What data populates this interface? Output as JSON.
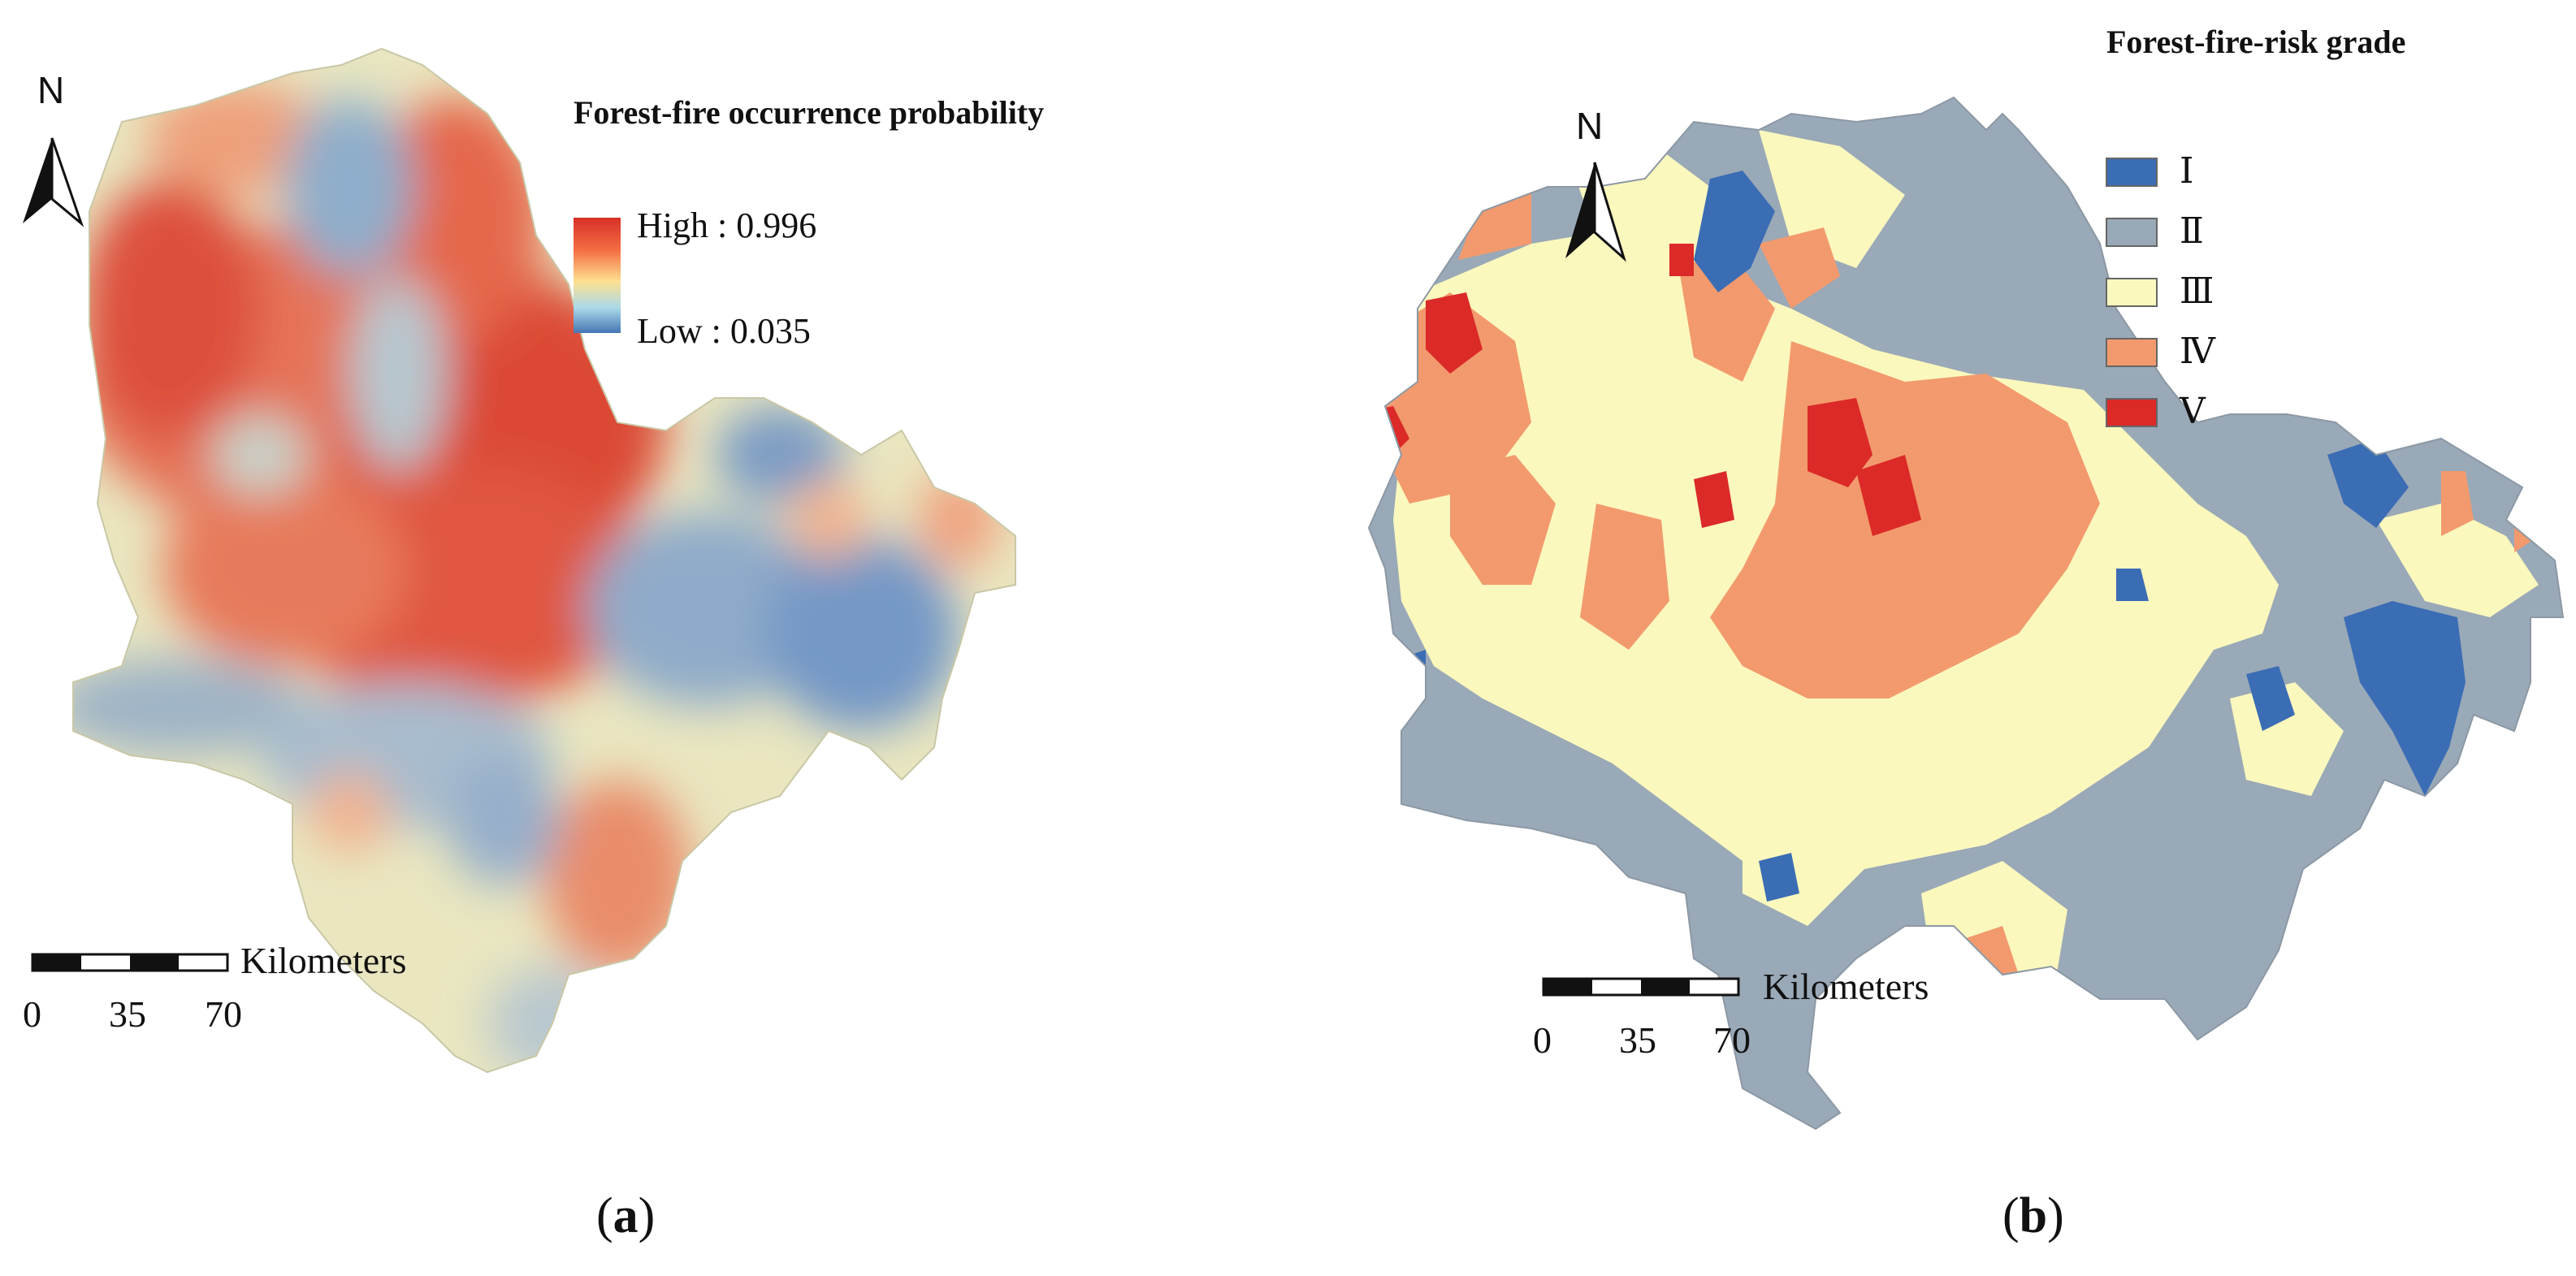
{
  "panel_a": {
    "north_label": "N",
    "legend_title": "Forest-fire occurrence probability",
    "legend_high": "High : 0.996",
    "legend_low": "Low : 0.035",
    "gradient_colors": [
      "#d73027",
      "#f46d43",
      "#fee090",
      "#abd9e9",
      "#4575b4"
    ],
    "scale_unit": "Kilometers",
    "scale_ticks": [
      "0",
      "35",
      "70"
    ],
    "caption_open": "(",
    "caption_letter": "a",
    "caption_close": ")"
  },
  "panel_b": {
    "north_label": "N",
    "legend_title": "Forest-fire-risk grade",
    "classes": [
      {
        "label": "Ⅰ",
        "color": "#3b6db5"
      },
      {
        "label": "Ⅱ",
        "color": "#9aa9b7"
      },
      {
        "label": "Ⅲ",
        "color": "#fbf8bd"
      },
      {
        "label": "Ⅳ",
        "color": "#f29a6e"
      },
      {
        "label": "Ⅴ",
        "color": "#db2a28"
      }
    ],
    "scale_unit": "Kilometers",
    "scale_ticks": [
      "0",
      "35",
      "70"
    ],
    "caption_open": "(",
    "caption_letter": "b",
    "caption_close": ")"
  }
}
